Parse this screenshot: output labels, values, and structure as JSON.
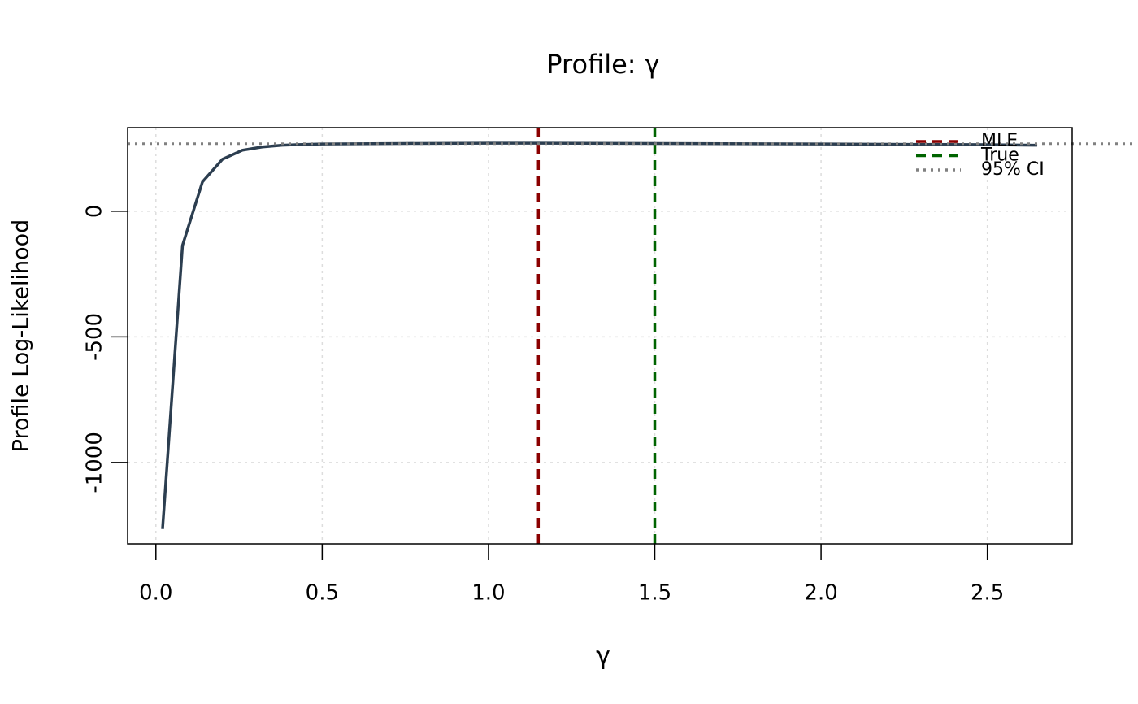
{
  "chart_data": {
    "type": "line",
    "title": "Profile: γ",
    "x_label": "γ",
    "y_label": "Profile Log-Likelihood",
    "x": [
      0.02,
      0.08,
      0.14,
      0.2,
      0.26,
      0.32,
      0.38,
      0.44,
      0.5,
      0.75,
      1.0,
      1.15,
      1.5,
      2.0,
      2.5,
      2.65
    ],
    "values": [
      -1265,
      -136,
      117,
      207,
      243,
      256,
      263,
      266,
      268,
      270,
      271,
      271,
      270,
      268,
      265,
      263
    ],
    "color": "#2c3e50",
    "reference_lines": [
      {
        "name": "MLE",
        "x": 1.15,
        "color": "#8b0000",
        "dash": "dashed"
      },
      {
        "name": "True",
        "x": 1.5,
        "color": "#006400",
        "dash": "dashed"
      },
      {
        "name": "95% CI",
        "y": 269,
        "color": "#808080",
        "dash": "dotted"
      }
    ],
    "xlim": [
      -0.085,
      2.755
    ],
    "ylim": [
      -1324,
      333
    ],
    "xticks": [
      {
        "value": 0,
        "label": "0.0"
      },
      0.5,
      {
        "value": 1,
        "label": "1.0"
      },
      1.5,
      {
        "value": 2,
        "label": "2.0"
      },
      2.5
    ],
    "yticks": [
      -1000,
      -500,
      0
    ],
    "grid": true,
    "legend": "topright"
  }
}
